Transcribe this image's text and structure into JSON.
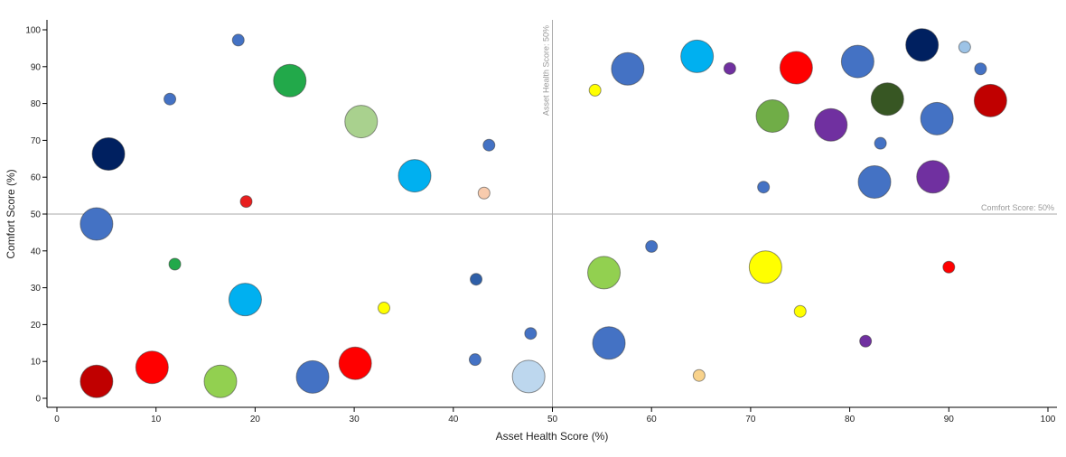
{
  "chart_data": {
    "type": "scatter",
    "xlabel": "Asset Health Score (%)",
    "ylabel": "Comfort Score (%)",
    "xlim": [
      0,
      100
    ],
    "ylim": [
      0,
      100
    ],
    "x_ticks": [
      0,
      10,
      20,
      30,
      40,
      50,
      60,
      70,
      80,
      90,
      100
    ],
    "y_ticks": [
      0,
      10,
      20,
      30,
      40,
      50,
      60,
      70,
      80,
      90,
      100
    ],
    "grid": false,
    "reference_lines": [
      {
        "axis": "x",
        "value": 50,
        "label": "Asset Health Score: 50%"
      },
      {
        "axis": "y",
        "value": 50,
        "label": "Comfort Score: 50%"
      }
    ],
    "points": [
      {
        "x": 18.3,
        "y": 97.2,
        "size": 1,
        "color": "#4472C4"
      },
      {
        "x": 11.4,
        "y": 81.2,
        "size": 1,
        "color": "#4472C4"
      },
      {
        "x": 23.5,
        "y": 86.2,
        "size": 3,
        "color": "#22A94A"
      },
      {
        "x": 30.7,
        "y": 75.1,
        "size": 3,
        "color": "#A9D18E"
      },
      {
        "x": 5.2,
        "y": 66.3,
        "size": 3,
        "color": "#002060"
      },
      {
        "x": 36.1,
        "y": 60.4,
        "size": 3,
        "color": "#00B0F0"
      },
      {
        "x": 43.6,
        "y": 68.7,
        "size": 1,
        "color": "#4472C4"
      },
      {
        "x": 43.1,
        "y": 55.7,
        "size": 1,
        "color": "#F8CBAD"
      },
      {
        "x": 19.1,
        "y": 53.4,
        "size": 1,
        "color": "#E81F1F"
      },
      {
        "x": 4.0,
        "y": 47.3,
        "size": 3,
        "color": "#4472C4"
      },
      {
        "x": 11.9,
        "y": 36.4,
        "size": 1,
        "color": "#22A94A"
      },
      {
        "x": 19.0,
        "y": 26.8,
        "size": 3,
        "color": "#00B0F0"
      },
      {
        "x": 42.3,
        "y": 32.3,
        "size": 1,
        "color": "#2E5FA8"
      },
      {
        "x": 33.0,
        "y": 24.5,
        "size": 1,
        "color": "#FFFF00"
      },
      {
        "x": 47.8,
        "y": 17.6,
        "size": 1,
        "color": "#4472C4"
      },
      {
        "x": 42.2,
        "y": 10.5,
        "size": 1,
        "color": "#4472C4"
      },
      {
        "x": 4.0,
        "y": 4.6,
        "size": 3,
        "color": "#C00000"
      },
      {
        "x": 9.6,
        "y": 8.4,
        "size": 3,
        "color": "#FF0000"
      },
      {
        "x": 16.5,
        "y": 4.6,
        "size": 3,
        "color": "#92D050"
      },
      {
        "x": 25.8,
        "y": 5.8,
        "size": 3,
        "color": "#4472C4"
      },
      {
        "x": 30.1,
        "y": 9.5,
        "size": 3,
        "color": "#FF0000"
      },
      {
        "x": 47.6,
        "y": 5.9,
        "size": 3,
        "color": "#BDD7EE"
      },
      {
        "x": 54.3,
        "y": 83.6,
        "size": 1,
        "color": "#FFFF00"
      },
      {
        "x": 57.6,
        "y": 89.4,
        "size": 3,
        "color": "#4472C4"
      },
      {
        "x": 64.6,
        "y": 92.8,
        "size": 3,
        "color": "#00B0F0"
      },
      {
        "x": 67.9,
        "y": 89.5,
        "size": 1,
        "color": "#7030A0"
      },
      {
        "x": 74.6,
        "y": 89.7,
        "size": 3,
        "color": "#FF0000"
      },
      {
        "x": 80.8,
        "y": 91.4,
        "size": 3,
        "color": "#4472C4"
      },
      {
        "x": 87.3,
        "y": 95.9,
        "size": 3,
        "color": "#002060"
      },
      {
        "x": 91.6,
        "y": 95.3,
        "size": 1,
        "color": "#9DC3E6"
      },
      {
        "x": 93.2,
        "y": 89.4,
        "size": 1,
        "color": "#4472C4"
      },
      {
        "x": 72.2,
        "y": 76.6,
        "size": 3,
        "color": "#70AD47"
      },
      {
        "x": 78.1,
        "y": 74.2,
        "size": 3,
        "color": "#7030A0"
      },
      {
        "x": 83.8,
        "y": 81.2,
        "size": 3,
        "color": "#375623"
      },
      {
        "x": 88.8,
        "y": 75.9,
        "size": 3,
        "color": "#4472C4"
      },
      {
        "x": 94.2,
        "y": 80.8,
        "size": 3,
        "color": "#C00000"
      },
      {
        "x": 83.1,
        "y": 69.2,
        "size": 1,
        "color": "#4472C4"
      },
      {
        "x": 71.3,
        "y": 57.3,
        "size": 1,
        "color": "#4472C4"
      },
      {
        "x": 82.5,
        "y": 58.7,
        "size": 3,
        "color": "#4472C4"
      },
      {
        "x": 88.4,
        "y": 60.1,
        "size": 3,
        "color": "#7030A0"
      },
      {
        "x": 60.0,
        "y": 41.2,
        "size": 1,
        "color": "#4472C4"
      },
      {
        "x": 55.2,
        "y": 34.1,
        "size": 3,
        "color": "#92D050"
      },
      {
        "x": 71.5,
        "y": 35.6,
        "size": 3,
        "color": "#FFFF00"
      },
      {
        "x": 90.0,
        "y": 35.6,
        "size": 1,
        "color": "#FF0000"
      },
      {
        "x": 75.0,
        "y": 23.6,
        "size": 1,
        "color": "#FFFF00"
      },
      {
        "x": 55.7,
        "y": 15.0,
        "size": 3,
        "color": "#4472C4"
      },
      {
        "x": 81.6,
        "y": 15.5,
        "size": 1,
        "color": "#7030A0"
      },
      {
        "x": 64.8,
        "y": 6.2,
        "size": 1,
        "color": "#F8D28B"
      }
    ]
  }
}
